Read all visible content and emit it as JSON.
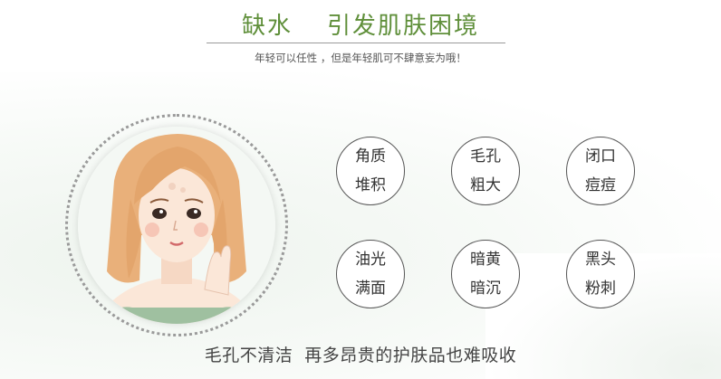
{
  "header": {
    "title_part1": "缺水",
    "title_part2": "引发肌肤困境",
    "subtitle": "年轻可以任性 ，但是年轻肌可不肆意妄为哦！"
  },
  "problems": [
    {
      "line1": "角质",
      "line2": "堆积"
    },
    {
      "line1": "毛孔",
      "line2": "粗大"
    },
    {
      "line1": "闭口",
      "line2": "痘痘"
    },
    {
      "line1": "油光",
      "line2": "满面"
    },
    {
      "line1": "暗黄",
      "line2": "暗沉"
    },
    {
      "line1": "黑头",
      "line2": "粉刺"
    }
  ],
  "footer": {
    "text": "毛孔不清洁  再多昂贵的护肤品也难吸收"
  },
  "colors": {
    "title": "#5f8f3a",
    "hair": "#e9b07a",
    "skin": "#fbe7d8"
  }
}
